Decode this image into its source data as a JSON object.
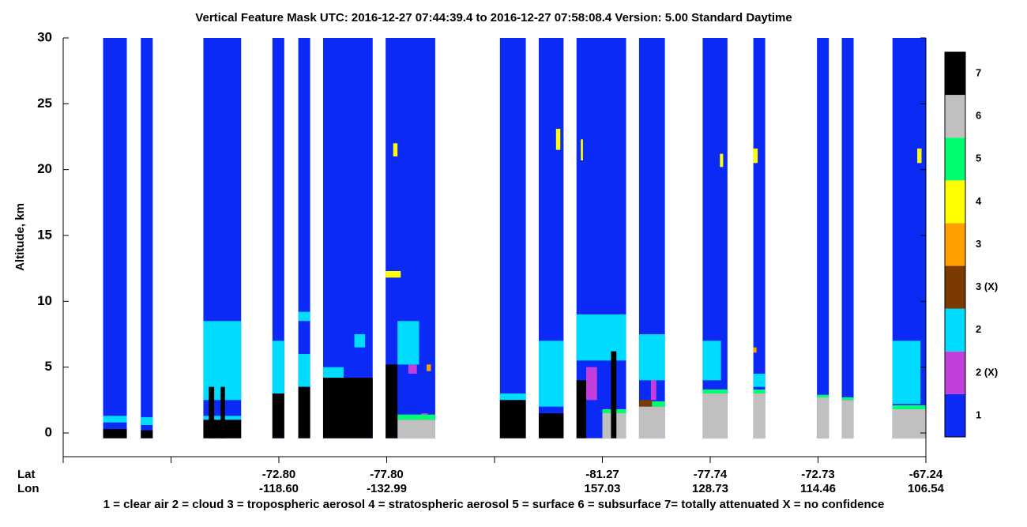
{
  "chart_data": {
    "type": "feature-mask",
    "title": "Vertical Feature Mask    UTC:  2016-12-27    07:44:39.4  to  2016-12-27    07:58:08.4    Version: 5.00  Standard Daytime",
    "y_label": "Altitude, km",
    "ylim": [
      -1.8,
      30
    ],
    "yticks": [
      0,
      5,
      10,
      15,
      20,
      25,
      30
    ],
    "xlim": [
      0,
      8
    ],
    "xticks": [
      0,
      1,
      2,
      3,
      4,
      5,
      6,
      7,
      8
    ],
    "lat_label": "Lat",
    "lon_label": "Lon",
    "lat": [
      null,
      null,
      "-72.80",
      "-77.80",
      null,
      "-81.27",
      "-77.74",
      "-72.73",
      "-67.24"
    ],
    "lon": [
      null,
      null,
      "-118.60",
      "-132.99",
      null,
      "157.03",
      "128.73",
      "114.46",
      "106.54"
    ],
    "legend_text": "1 = clear air    2 = cloud    3 = tropospheric aerosol    4 = stratospheric aerosol    5 = surface    6 = subsurface    7= totally attenuated    X = no confidence",
    "colorbar": [
      {
        "label": "1",
        "color": "#0b2af5",
        "regions": [
          {
            "x": [
              0.37,
              0.59
            ],
            "y": [
              -0.4,
              30
            ]
          },
          {
            "x": [
              0.72,
              0.83
            ],
            "y": [
              -0.4,
              30
            ]
          },
          {
            "x": [
              1.3,
              1.65
            ],
            "y": [
              -0.4,
              30
            ]
          },
          {
            "x": [
              1.94,
              2.05
            ],
            "y": [
              -0.4,
              30
            ]
          },
          {
            "x": [
              2.18,
              2.29
            ],
            "y": [
              -0.4,
              30
            ]
          },
          {
            "x": [
              2.41,
              2.87
            ],
            "y": [
              -0.4,
              30
            ]
          },
          {
            "x": [
              2.99,
              3.45
            ],
            "y": [
              -0.4,
              30
            ]
          },
          {
            "x": [
              4.05,
              4.29
            ],
            "y": [
              -0.4,
              30
            ]
          },
          {
            "x": [
              4.41,
              4.64
            ],
            "y": [
              -0.4,
              30
            ]
          },
          {
            "x": [
              4.76,
              5.22
            ],
            "y": [
              -0.4,
              30
            ]
          },
          {
            "x": [
              5.34,
              5.58
            ],
            "y": [
              -0.4,
              30
            ]
          },
          {
            "x": [
              5.93,
              6.16
            ],
            "y": [
              -0.4,
              30
            ]
          },
          {
            "x": [
              6.4,
              6.51
            ],
            "y": [
              -0.4,
              30
            ]
          },
          {
            "x": [
              6.99,
              7.1
            ],
            "y": [
              -0.4,
              30
            ]
          },
          {
            "x": [
              7.22,
              7.33
            ],
            "y": [
              -0.4,
              30
            ]
          },
          {
            "x": [
              7.69,
              8.0
            ],
            "y": [
              -0.4,
              30
            ]
          }
        ]
      },
      {
        "label": "2 (X)",
        "color": "#c23fdc",
        "regions": [
          {
            "x": [
              3.2,
              3.28
            ],
            "y": [
              4.5,
              5.2
            ]
          },
          {
            "x": [
              3.32,
              3.38
            ],
            "y": [
              0.8,
              1.5
            ]
          },
          {
            "x": [
              4.53,
              4.58
            ],
            "y": [
              0.2,
              1.5
            ]
          },
          {
            "x": [
              4.85,
              4.95
            ],
            "y": [
              2.5,
              5.0
            ]
          },
          {
            "x": [
              5.45,
              5.5
            ],
            "y": [
              2.5,
              4.0
            ]
          }
        ]
      },
      {
        "label": "2",
        "color": "#00dcff",
        "regions": [
          {
            "x": [
              0.37,
              0.59
            ],
            "y": [
              0.8,
              1.3
            ]
          },
          {
            "x": [
              0.72,
              0.83
            ],
            "y": [
              0.6,
              1.2
            ]
          },
          {
            "x": [
              1.3,
              1.65
            ],
            "y": [
              2.5,
              8.5
            ]
          },
          {
            "x": [
              1.3,
              1.65
            ],
            "y": [
              1.0,
              1.3
            ]
          },
          {
            "x": [
              1.94,
              2.05
            ],
            "y": [
              3.0,
              7.0
            ]
          },
          {
            "x": [
              2.18,
              2.29
            ],
            "y": [
              3.5,
              6.0
            ]
          },
          {
            "x": [
              2.18,
              2.29
            ],
            "y": [
              8.5,
              9.2
            ]
          },
          {
            "x": [
              2.41,
              2.6
            ],
            "y": [
              4.2,
              5.0
            ]
          },
          {
            "x": [
              2.7,
              2.8
            ],
            "y": [
              6.5,
              7.5
            ]
          },
          {
            "x": [
              3.1,
              3.3
            ],
            "y": [
              5.2,
              8.5
            ]
          },
          {
            "x": [
              4.05,
              4.29
            ],
            "y": [
              2.5,
              3.0
            ]
          },
          {
            "x": [
              4.41,
              4.64
            ],
            "y": [
              2.0,
              7.0
            ]
          },
          {
            "x": [
              4.76,
              5.22
            ],
            "y": [
              5.5,
              9.0
            ]
          },
          {
            "x": [
              5.34,
              5.58
            ],
            "y": [
              4.0,
              7.5
            ]
          },
          {
            "x": [
              5.93,
              6.1
            ],
            "y": [
              4.0,
              7.0
            ]
          },
          {
            "x": [
              6.4,
              6.51
            ],
            "y": [
              3.5,
              4.5
            ]
          },
          {
            "x": [
              7.69,
              7.95
            ],
            "y": [
              2.2,
              7.0
            ]
          }
        ]
      },
      {
        "label": "3 (X)",
        "color": "#7a3a00",
        "regions": [
          {
            "x": [
              5.34,
              5.46
            ],
            "y": [
              2.0,
              2.5
            ]
          }
        ]
      },
      {
        "label": "3",
        "color": "#ff9f00",
        "regions": [
          {
            "x": [
              3.37,
              3.41
            ],
            "y": [
              4.7,
              5.2
            ]
          },
          {
            "x": [
              6.4,
              6.43
            ],
            "y": [
              6.1,
              6.5
            ]
          }
        ]
      },
      {
        "label": "4",
        "color": "#ffff00",
        "regions": [
          {
            "x": [
              2.99,
              3.13
            ],
            "y": [
              11.8,
              12.3
            ]
          },
          {
            "x": [
              3.06,
              3.1
            ],
            "y": [
              21,
              22
            ]
          },
          {
            "x": [
              4.57,
              4.61
            ],
            "y": [
              21.5,
              23.1
            ]
          },
          {
            "x": [
              4.8,
              4.82
            ],
            "y": [
              20.7,
              22.3
            ]
          },
          {
            "x": [
              6.09,
              6.12
            ],
            "y": [
              20.2,
              21.2
            ]
          },
          {
            "x": [
              6.4,
              6.44
            ],
            "y": [
              20.5,
              21.6
            ]
          },
          {
            "x": [
              7.92,
              7.96
            ],
            "y": [
              20.5,
              21.6
            ]
          }
        ]
      },
      {
        "label": "5",
        "color": "#00ff6e",
        "regions": [
          {
            "x": [
              3.1,
              3.45
            ],
            "y": [
              1.0,
              1.4
            ]
          },
          {
            "x": [
              5.0,
              5.22
            ],
            "y": [
              1.5,
              1.8
            ]
          },
          {
            "x": [
              5.46,
              5.58
            ],
            "y": [
              2.0,
              2.4
            ]
          },
          {
            "x": [
              5.93,
              6.16
            ],
            "y": [
              3.0,
              3.3
            ]
          },
          {
            "x": [
              6.4,
              6.51
            ],
            "y": [
              3.0,
              3.3
            ]
          },
          {
            "x": [
              6.99,
              7.1
            ],
            "y": [
              2.7,
              2.9
            ]
          },
          {
            "x": [
              7.22,
              7.33
            ],
            "y": [
              2.5,
              2.7
            ]
          },
          {
            "x": [
              7.69,
              8.0
            ],
            "y": [
              1.8,
              2.1
            ]
          }
        ]
      },
      {
        "label": "6",
        "color": "#c0c0c0",
        "regions": [
          {
            "x": [
              3.1,
              3.45
            ],
            "y": [
              -0.4,
              1.0
            ]
          },
          {
            "x": [
              5.0,
              5.22
            ],
            "y": [
              -0.4,
              1.5
            ]
          },
          {
            "x": [
              5.34,
              5.58
            ],
            "y": [
              -0.4,
              2.0
            ]
          },
          {
            "x": [
              5.93,
              6.16
            ],
            "y": [
              -0.4,
              3.0
            ]
          },
          {
            "x": [
              6.4,
              6.51
            ],
            "y": [
              -0.4,
              3.0
            ]
          },
          {
            "x": [
              6.99,
              7.1
            ],
            "y": [
              -0.4,
              2.7
            ]
          },
          {
            "x": [
              7.22,
              7.33
            ],
            "y": [
              -0.4,
              2.5
            ]
          },
          {
            "x": [
              7.69,
              8.0
            ],
            "y": [
              -0.4,
              1.8
            ]
          }
        ]
      },
      {
        "label": "7",
        "color": "#000000",
        "regions": [
          {
            "x": [
              0.37,
              0.59
            ],
            "y": [
              -0.4,
              0.3
            ]
          },
          {
            "x": [
              0.72,
              0.83
            ],
            "y": [
              -0.4,
              0.2
            ]
          },
          {
            "x": [
              1.3,
              1.65
            ],
            "y": [
              -0.4,
              1.0
            ]
          },
          {
            "x": [
              1.35,
              1.4
            ],
            "y": [
              -0.4,
              3.5
            ]
          },
          {
            "x": [
              1.46,
              1.5
            ],
            "y": [
              -0.4,
              3.5
            ]
          },
          {
            "x": [
              1.94,
              2.05
            ],
            "y": [
              -0.4,
              3.0
            ]
          },
          {
            "x": [
              2.18,
              2.29
            ],
            "y": [
              -0.4,
              3.5
            ]
          },
          {
            "x": [
              2.41,
              2.87
            ],
            "y": [
              -0.4,
              4.2
            ]
          },
          {
            "x": [
              2.99,
              3.1
            ],
            "y": [
              -0.4,
              5.2
            ]
          },
          {
            "x": [
              4.05,
              4.29
            ],
            "y": [
              -0.4,
              2.5
            ]
          },
          {
            "x": [
              4.41,
              4.64
            ],
            "y": [
              -0.4,
              1.5
            ]
          },
          {
            "x": [
              4.76,
              4.85
            ],
            "y": [
              -0.4,
              4.0
            ]
          },
          {
            "x": [
              5.08,
              5.13
            ],
            "y": [
              -0.4,
              6.2
            ]
          }
        ]
      }
    ]
  }
}
